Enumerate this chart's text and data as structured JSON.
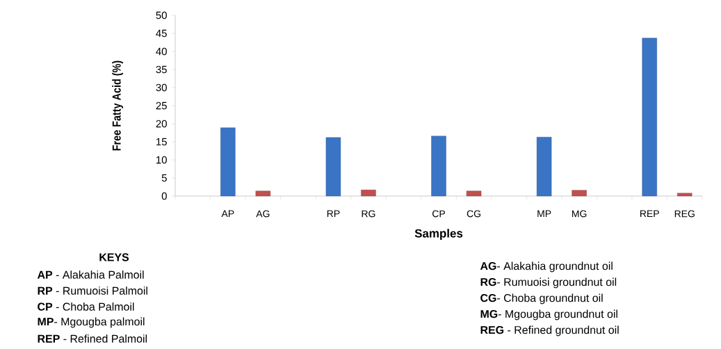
{
  "chart_data": {
    "type": "bar",
    "xlabel": "Samples",
    "ylabel": "Free Fatty Acid (%)",
    "categories": [
      null,
      "AP",
      "AG",
      null,
      "RP",
      "RG",
      null,
      "CP",
      "CG",
      null,
      "MP",
      "MG",
      null,
      "REP",
      "REG"
    ],
    "values": [
      null,
      18.9,
      1.4,
      null,
      16.2,
      1.7,
      null,
      16.6,
      1.4,
      null,
      16.3,
      1.6,
      null,
      43.7,
      0.8
    ],
    "colors": [
      "#3a74c4",
      "#3a74c4",
      "#c0504d",
      "#3a74c4",
      "#3a74c4",
      "#c0504d",
      "#3a74c4",
      "#3a74c4",
      "#c0504d",
      "#3a74c4",
      "#3a74c4",
      "#c0504d",
      "#3a74c4",
      "#3a74c4",
      "#c0504d"
    ],
    "ylim": [
      0,
      50
    ],
    "yticks": [
      0,
      5,
      10,
      15,
      20,
      25,
      30,
      35,
      40,
      45,
      50
    ],
    "grid": false,
    "annotations": [
      "**KEYS**",
      "**AP** - Alakahia Palmoil",
      "**RP** - Rumuoisi Palmoil",
      "**CP** - Choba Palmoil",
      "**MP**- Mgougba palmoil",
      "**REP** - Refined Palmoil",
      "**AG**- Alakahia groundnut oil",
      "**RG**- Rumuoisi groundnut oil",
      "**CG**- Choba groundnut oil",
      "**MG**- Mgougba groundnut oil",
      "**REG** - Refined groundnut oil"
    ]
  }
}
